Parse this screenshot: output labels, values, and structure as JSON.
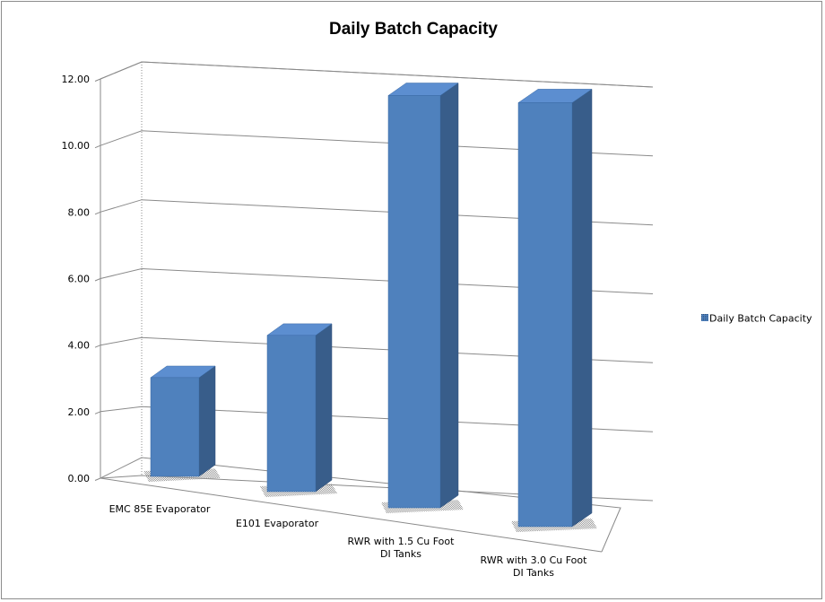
{
  "chart_data": {
    "type": "bar",
    "title": "Daily Batch Capacity",
    "xlabel": "",
    "ylabel": "",
    "ylim": [
      0,
      12
    ],
    "yticks": [
      "0.00",
      "2.00",
      "4.00",
      "6.00",
      "8.00",
      "10.00",
      "12.00"
    ],
    "categories": [
      [
        "EMC 85E Evaporator"
      ],
      [
        "E101 Evaporator"
      ],
      [
        "RWR with 1.5 Cu Foot",
        "DI Tanks"
      ],
      [
        "RWR with 3.0 Cu Foot",
        "DI Tanks"
      ]
    ],
    "series": [
      {
        "name": "Daily Batch Capacity",
        "values": [
          3.0,
          4.65,
          12.0,
          12.0
        ]
      }
    ],
    "grid": true,
    "legend": "right",
    "projection": "3d-column",
    "colors": {
      "bar_front": "#4f81bd",
      "bar_side": "#385d8a",
      "bar_top": "#5c8ed0",
      "grid": "#8a8a8a"
    }
  }
}
